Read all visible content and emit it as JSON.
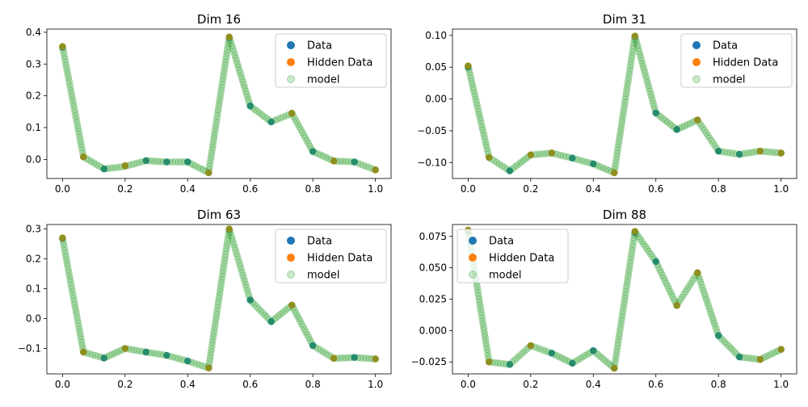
{
  "legend_labels": {
    "data": "Data",
    "hidden": "Hidden Data",
    "model": "model"
  },
  "colors": {
    "data": "#1f77b4",
    "hidden": "#ff7f0e",
    "model": "#2ca02c"
  },
  "chart_data": [
    {
      "type": "scatter",
      "title": "Dim 16",
      "xlim": [
        -0.05,
        1.05
      ],
      "ylim": [
        -0.06,
        0.41
      ],
      "xticks": [
        0.0,
        0.2,
        0.4,
        0.6,
        0.8,
        1.0
      ],
      "xtick_labels": [
        "0.0",
        "0.2",
        "0.4",
        "0.6",
        "0.8",
        "1.0"
      ],
      "yticks": [
        0.0,
        0.1,
        0.2,
        0.3,
        0.4
      ],
      "ytick_labels": [
        "0.0",
        "0.1",
        "0.2",
        "0.3",
        "0.4"
      ],
      "legend_position": "upper right",
      "curve": [
        [
          0.0,
          0.355
        ],
        [
          0.067,
          0.008
        ],
        [
          0.133,
          -0.03
        ],
        [
          0.2,
          -0.022
        ],
        [
          0.267,
          -0.004
        ],
        [
          0.333,
          -0.008
        ],
        [
          0.4,
          -0.008
        ],
        [
          0.467,
          -0.042
        ],
        [
          0.533,
          0.385
        ],
        [
          0.6,
          0.168
        ],
        [
          0.667,
          0.118
        ],
        [
          0.733,
          0.145
        ],
        [
          0.8,
          0.025
        ],
        [
          0.867,
          -0.005
        ],
        [
          0.933,
          -0.008
        ],
        [
          1.0,
          -0.033
        ]
      ],
      "series": [
        {
          "name": "Data",
          "points": [
            [
              0.0,
              0.352
            ],
            [
              0.067,
              0.008
            ],
            [
              0.133,
              -0.03
            ],
            [
              0.2,
              -0.02
            ],
            [
              0.267,
              -0.004
            ],
            [
              0.333,
              -0.008
            ],
            [
              0.4,
              -0.008
            ],
            [
              0.467,
              -0.042
            ],
            [
              0.533,
              0.383
            ],
            [
              0.6,
              0.168
            ],
            [
              0.667,
              0.118
            ],
            [
              0.733,
              0.145
            ],
            [
              0.8,
              0.025
            ],
            [
              0.867,
              -0.005
            ],
            [
              0.933,
              -0.008
            ],
            [
              1.0,
              -0.033
            ]
          ]
        },
        {
          "name": "Hidden Data",
          "points": [
            [
              0.0,
              0.355
            ],
            [
              0.067,
              0.008
            ],
            [
              0.2,
              -0.02
            ],
            [
              0.467,
              -0.042
            ],
            [
              0.533,
              0.385
            ],
            [
              0.733,
              0.145
            ],
            [
              0.867,
              -0.005
            ],
            [
              1.0,
              -0.033
            ]
          ]
        }
      ]
    },
    {
      "type": "scatter",
      "title": "Dim 31",
      "xlim": [
        -0.05,
        1.05
      ],
      "ylim": [
        -0.125,
        0.11
      ],
      "xticks": [
        0.0,
        0.2,
        0.4,
        0.6,
        0.8,
        1.0
      ],
      "xtick_labels": [
        "0.0",
        "0.2",
        "0.4",
        "0.6",
        "0.8",
        "1.0"
      ],
      "yticks": [
        -0.1,
        -0.05,
        0.0,
        0.05,
        0.1
      ],
      "ytick_labels": [
        "−0.10",
        "−0.05",
        "0.00",
        "0.05",
        "0.10"
      ],
      "legend_position": "upper right",
      "curve": [
        [
          0.0,
          0.052
        ],
        [
          0.067,
          -0.092
        ],
        [
          0.133,
          -0.113
        ],
        [
          0.2,
          -0.088
        ],
        [
          0.267,
          -0.085
        ],
        [
          0.333,
          -0.093
        ],
        [
          0.4,
          -0.102
        ],
        [
          0.467,
          -0.116
        ],
        [
          0.533,
          0.099
        ],
        [
          0.6,
          -0.022
        ],
        [
          0.667,
          -0.048
        ],
        [
          0.733,
          -0.033
        ],
        [
          0.8,
          -0.082
        ],
        [
          0.867,
          -0.087
        ],
        [
          0.933,
          -0.082
        ],
        [
          1.0,
          -0.085
        ]
      ],
      "series": [
        {
          "name": "Data",
          "points": [
            [
              0.0,
              0.05
            ],
            [
              0.067,
              -0.092
            ],
            [
              0.133,
              -0.113
            ],
            [
              0.2,
              -0.088
            ],
            [
              0.267,
              -0.085
            ],
            [
              0.333,
              -0.093
            ],
            [
              0.4,
              -0.102
            ],
            [
              0.467,
              -0.116
            ],
            [
              0.533,
              0.098
            ],
            [
              0.6,
              -0.022
            ],
            [
              0.667,
              -0.048
            ],
            [
              0.733,
              -0.033
            ],
            [
              0.8,
              -0.082
            ],
            [
              0.867,
              -0.087
            ],
            [
              0.933,
              -0.082
            ],
            [
              1.0,
              -0.085
            ]
          ]
        },
        {
          "name": "Hidden Data",
          "points": [
            [
              0.0,
              0.052
            ],
            [
              0.067,
              -0.092
            ],
            [
              0.2,
              -0.088
            ],
            [
              0.267,
              -0.085
            ],
            [
              0.467,
              -0.116
            ],
            [
              0.533,
              0.099
            ],
            [
              0.733,
              -0.033
            ],
            [
              0.933,
              -0.082
            ],
            [
              1.0,
              -0.085
            ]
          ]
        }
      ]
    },
    {
      "type": "scatter",
      "title": "Dim 63",
      "xlim": [
        -0.05,
        1.05
      ],
      "ylim": [
        -0.185,
        0.315
      ],
      "xticks": [
        0.0,
        0.2,
        0.4,
        0.6,
        0.8,
        1.0
      ],
      "xtick_labels": [
        "0.0",
        "0.2",
        "0.4",
        "0.6",
        "0.8",
        "1.0"
      ],
      "yticks": [
        -0.1,
        0.0,
        0.1,
        0.2,
        0.3
      ],
      "ytick_labels": [
        "−0.1",
        "0.0",
        "0.1",
        "0.2",
        "0.3"
      ],
      "legend_position": "upper right",
      "curve": [
        [
          0.0,
          0.27
        ],
        [
          0.067,
          -0.112
        ],
        [
          0.133,
          -0.132
        ],
        [
          0.2,
          -0.1
        ],
        [
          0.267,
          -0.112
        ],
        [
          0.333,
          -0.123
        ],
        [
          0.4,
          -0.142
        ],
        [
          0.467,
          -0.165
        ],
        [
          0.533,
          0.3
        ],
        [
          0.6,
          0.062
        ],
        [
          0.667,
          -0.01
        ],
        [
          0.733,
          0.045
        ],
        [
          0.8,
          -0.09
        ],
        [
          0.867,
          -0.133
        ],
        [
          0.933,
          -0.13
        ],
        [
          1.0,
          -0.135
        ]
      ],
      "series": [
        {
          "name": "Data",
          "points": [
            [
              0.0,
              0.268
            ],
            [
              0.067,
              -0.112
            ],
            [
              0.133,
              -0.132
            ],
            [
              0.2,
              -0.1
            ],
            [
              0.267,
              -0.112
            ],
            [
              0.333,
              -0.123
            ],
            [
              0.4,
              -0.142
            ],
            [
              0.467,
              -0.165
            ],
            [
              0.533,
              0.298
            ],
            [
              0.6,
              0.062
            ],
            [
              0.667,
              -0.01
            ],
            [
              0.733,
              0.045
            ],
            [
              0.8,
              -0.09
            ],
            [
              0.867,
              -0.133
            ],
            [
              0.933,
              -0.13
            ],
            [
              1.0,
              -0.135
            ]
          ]
        },
        {
          "name": "Hidden Data",
          "points": [
            [
              0.0,
              0.27
            ],
            [
              0.067,
              -0.112
            ],
            [
              0.2,
              -0.1
            ],
            [
              0.467,
              -0.165
            ],
            [
              0.533,
              0.3
            ],
            [
              0.733,
              0.045
            ],
            [
              0.867,
              -0.133
            ],
            [
              1.0,
              -0.135
            ]
          ]
        }
      ]
    },
    {
      "type": "scatter",
      "title": "Dim 88",
      "xlim": [
        -0.05,
        1.05
      ],
      "ylim": [
        -0.0345,
        0.0845
      ],
      "xticks": [
        0.0,
        0.2,
        0.4,
        0.6,
        0.8,
        1.0
      ],
      "xtick_labels": [
        "0.0",
        "0.2",
        "0.4",
        "0.6",
        "0.8",
        "1.0"
      ],
      "yticks": [
        -0.025,
        0.0,
        0.025,
        0.05,
        0.075
      ],
      "ytick_labels": [
        "−0.025",
        "0.000",
        "0.025",
        "0.050",
        "0.075"
      ],
      "legend_position": "upper left",
      "curve": [
        [
          0.0,
          0.08
        ],
        [
          0.067,
          -0.025
        ],
        [
          0.133,
          -0.027
        ],
        [
          0.2,
          -0.012
        ],
        [
          0.267,
          -0.018
        ],
        [
          0.333,
          -0.026
        ],
        [
          0.4,
          -0.016
        ],
        [
          0.467,
          -0.03
        ],
        [
          0.533,
          0.079
        ],
        [
          0.6,
          0.055
        ],
        [
          0.667,
          0.02
        ],
        [
          0.733,
          0.046
        ],
        [
          0.8,
          -0.004
        ],
        [
          0.867,
          -0.021
        ],
        [
          0.933,
          -0.023
        ],
        [
          1.0,
          -0.015
        ]
      ],
      "series": [
        {
          "name": "Data",
          "points": [
            [
              0.0,
              0.079
            ],
            [
              0.067,
              -0.025
            ],
            [
              0.133,
              -0.027
            ],
            [
              0.2,
              -0.012
            ],
            [
              0.267,
              -0.018
            ],
            [
              0.333,
              -0.026
            ],
            [
              0.4,
              -0.016
            ],
            [
              0.467,
              -0.03
            ],
            [
              0.533,
              0.078
            ],
            [
              0.6,
              0.055
            ],
            [
              0.667,
              0.02
            ],
            [
              0.733,
              0.046
            ],
            [
              0.8,
              -0.004
            ],
            [
              0.867,
              -0.021
            ],
            [
              0.933,
              -0.023
            ],
            [
              1.0,
              -0.015
            ]
          ]
        },
        {
          "name": "Hidden Data",
          "points": [
            [
              0.0,
              0.08
            ],
            [
              0.067,
              -0.025
            ],
            [
              0.2,
              -0.012
            ],
            [
              0.467,
              -0.03
            ],
            [
              0.533,
              0.079
            ],
            [
              0.667,
              0.02
            ],
            [
              0.733,
              0.046
            ],
            [
              0.933,
              -0.023
            ],
            [
              1.0,
              -0.015
            ]
          ]
        }
      ]
    }
  ]
}
